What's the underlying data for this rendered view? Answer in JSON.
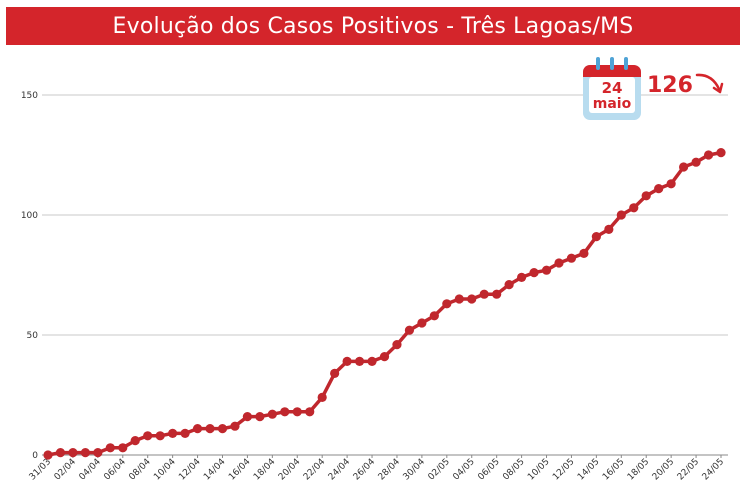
{
  "title": "Evolução dos Casos Positivos - Três Lagoas/MS",
  "colors": {
    "accent": "#d4252b",
    "line": "#c0272d",
    "calendar_body": "#b8dcef",
    "grid": "#c8c8c8"
  },
  "callout": {
    "day": "24",
    "month": "maio",
    "value": "126",
    "icon": "calendar-icon",
    "arrow_icon": "curved-arrow-icon"
  },
  "chart_data": {
    "type": "line",
    "title": "Evolução dos Casos Positivos - Três Lagoas/MS",
    "xlabel": "",
    "ylabel": "",
    "ylim": [
      0,
      170
    ],
    "yticks": [
      0,
      50,
      100,
      150
    ],
    "grid": true,
    "x": [
      "31/03",
      "01/04",
      "02/04",
      "03/04",
      "04/04",
      "05/04",
      "06/04",
      "07/04",
      "08/04",
      "09/04",
      "10/04",
      "11/04",
      "12/04",
      "13/04",
      "14/04",
      "15/04",
      "16/04",
      "17/04",
      "18/04",
      "19/04",
      "20/04",
      "21/04",
      "22/04",
      "23/04",
      "24/04",
      "25/04",
      "26/04",
      "27/04",
      "28/04",
      "29/04",
      "30/04",
      "01/05",
      "02/05",
      "03/05",
      "04/05",
      "05/05",
      "06/05",
      "07/05",
      "08/05",
      "09/05",
      "10/05",
      "11/05",
      "12/05",
      "13/05",
      "14/05",
      "15/05",
      "16/05",
      "17/05",
      "18/05",
      "19/05",
      "20/05",
      "21/05",
      "22/05",
      "23/05",
      "24/05"
    ],
    "xtick_labels": [
      "31/03",
      "02/04",
      "04/04",
      "06/04",
      "08/04",
      "10/04",
      "12/04",
      "14/04",
      "16/04",
      "18/04",
      "20/04",
      "22/04",
      "24/04",
      "26/04",
      "28/04",
      "30/04",
      "02/05",
      "04/05",
      "06/05",
      "08/05",
      "10/05",
      "12/05",
      "14/05",
      "16/05",
      "18/05",
      "20/05",
      "22/05",
      "24/05"
    ],
    "series": [
      {
        "values": [
          0,
          1,
          1,
          1,
          1,
          3,
          3,
          6,
          8,
          8,
          9,
          9,
          11,
          11,
          11,
          12,
          16,
          16,
          17,
          18,
          18,
          18,
          24,
          34,
          39,
          39,
          39,
          41,
          46,
          52,
          55,
          58,
          63,
          65,
          65,
          67,
          67,
          71,
          74,
          76,
          77,
          80,
          82,
          84,
          91,
          94,
          100,
          103,
          108,
          111,
          113,
          120,
          122,
          125,
          126
        ]
      }
    ]
  }
}
